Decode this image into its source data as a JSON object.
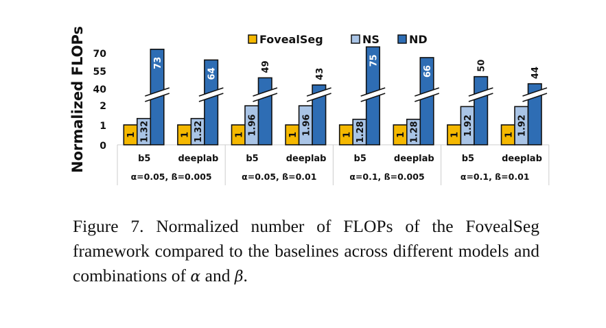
{
  "chart_data": {
    "type": "bar",
    "ylabel": "Normalized FLOPs",
    "y_axis": {
      "scale": "broken",
      "lower_ticks": [
        "0",
        "1",
        "2"
      ],
      "upper_ticks": [
        "40",
        "55",
        "70"
      ]
    },
    "legend": {
      "placement": "top",
      "entries": [
        "FovealSeg",
        "NS",
        "ND"
      ]
    },
    "groups": [
      "α=0.05, ß=0.005",
      "α=0.05, ß=0.01",
      "α=0.1, ß=0.005",
      "α=0.1, ß=0.01"
    ],
    "categories": [
      "b5",
      "deeplab",
      "b5",
      "deeplab",
      "b5",
      "deeplab",
      "b5",
      "deeplab"
    ],
    "series": [
      {
        "name": "FovealSeg",
        "color": "#f5b800",
        "labels": [
          "1",
          "1",
          "1",
          "1",
          "1",
          "1",
          "1",
          "1"
        ],
        "values": [
          1,
          1,
          1,
          1,
          1,
          1,
          1,
          1
        ]
      },
      {
        "name": "NS",
        "color": "#a9c4e6",
        "labels": [
          "1.32",
          "1.32",
          "1.96",
          "1.96",
          "1.28",
          "1.28",
          "1.92",
          "1.92"
        ],
        "values": [
          1.32,
          1.32,
          1.96,
          1.96,
          1.28,
          1.28,
          1.92,
          1.92
        ]
      },
      {
        "name": "ND",
        "color": "#2e6db4",
        "labels": [
          "73",
          "64",
          "49",
          "43",
          "75",
          "66",
          "50",
          "44"
        ],
        "values": [
          73,
          64,
          49,
          43,
          75,
          66,
          50,
          44
        ]
      }
    ],
    "grid": false
  },
  "caption": {
    "prefix": "Figure 7. Normalized number of FLOPs of the FovealSeg framework compared to the baselines across different models and combinations of ",
    "alpha": "α",
    "and": " and ",
    "beta": "β",
    "suffix": "."
  }
}
